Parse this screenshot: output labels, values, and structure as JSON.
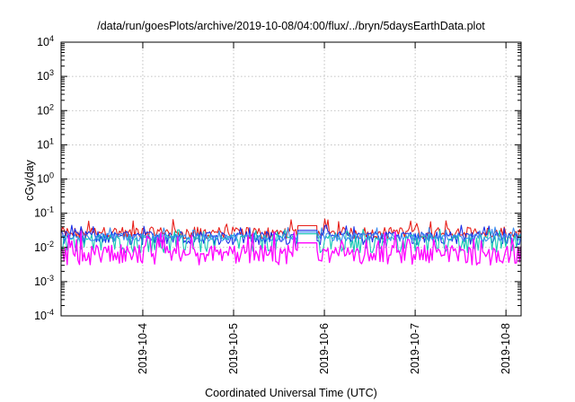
{
  "chart_data": {
    "type": "line",
    "title": "/data/run/goesPlots/archive/2019-10-08/04:00/flux/../bryn/5daysEarthData.plot",
    "xlabel": "Coordinated Universal Time (UTC)",
    "ylabel": "cGy/day",
    "yscale": "log",
    "ylim": [
      0.0001,
      10000
    ],
    "xlim": [
      "2019-10-03 02:24",
      "2019-10-08 04:00"
    ],
    "y_ticks": [
      {
        "base": "10",
        "exp": "-4"
      },
      {
        "base": "10",
        "exp": "-3"
      },
      {
        "base": "10",
        "exp": "-2"
      },
      {
        "base": "10",
        "exp": "-1"
      },
      {
        "base": "10",
        "exp": "0"
      },
      {
        "base": "10",
        "exp": "1"
      },
      {
        "base": "10",
        "exp": "2"
      },
      {
        "base": "10",
        "exp": "3"
      },
      {
        "base": "10",
        "exp": "4"
      }
    ],
    "x_ticks": [
      "2019-10-4",
      "2019-10-5",
      "2019-10-6",
      "2019-10-7",
      "2019-10-8"
    ],
    "x_tick_dates": [
      "2019-10-04",
      "2019-10-05",
      "2019-10-06",
      "2019-10-07",
      "2019-10-08"
    ],
    "grid": true,
    "data_gap": [
      "2019-10-05 17:00",
      "2019-10-05 22:00"
    ],
    "series": [
      {
        "color": "#e8201a",
        "y_typical": 0.03,
        "y_low": 0.018,
        "y_high": 0.075
      },
      {
        "color": "#1a2fe8",
        "y_typical": 0.025,
        "y_low": 0.012,
        "y_high": 0.045
      },
      {
        "color": "#18c8b4",
        "y_typical": 0.02,
        "y_low": 0.007,
        "y_high": 0.035
      },
      {
        "color": "#3a8cf0",
        "y_typical": 0.022,
        "y_low": 0.015,
        "y_high": 0.04
      },
      {
        "color": "#ff00ff",
        "y_typical": 0.008,
        "y_low": 0.003,
        "y_high": 0.03
      }
    ]
  }
}
